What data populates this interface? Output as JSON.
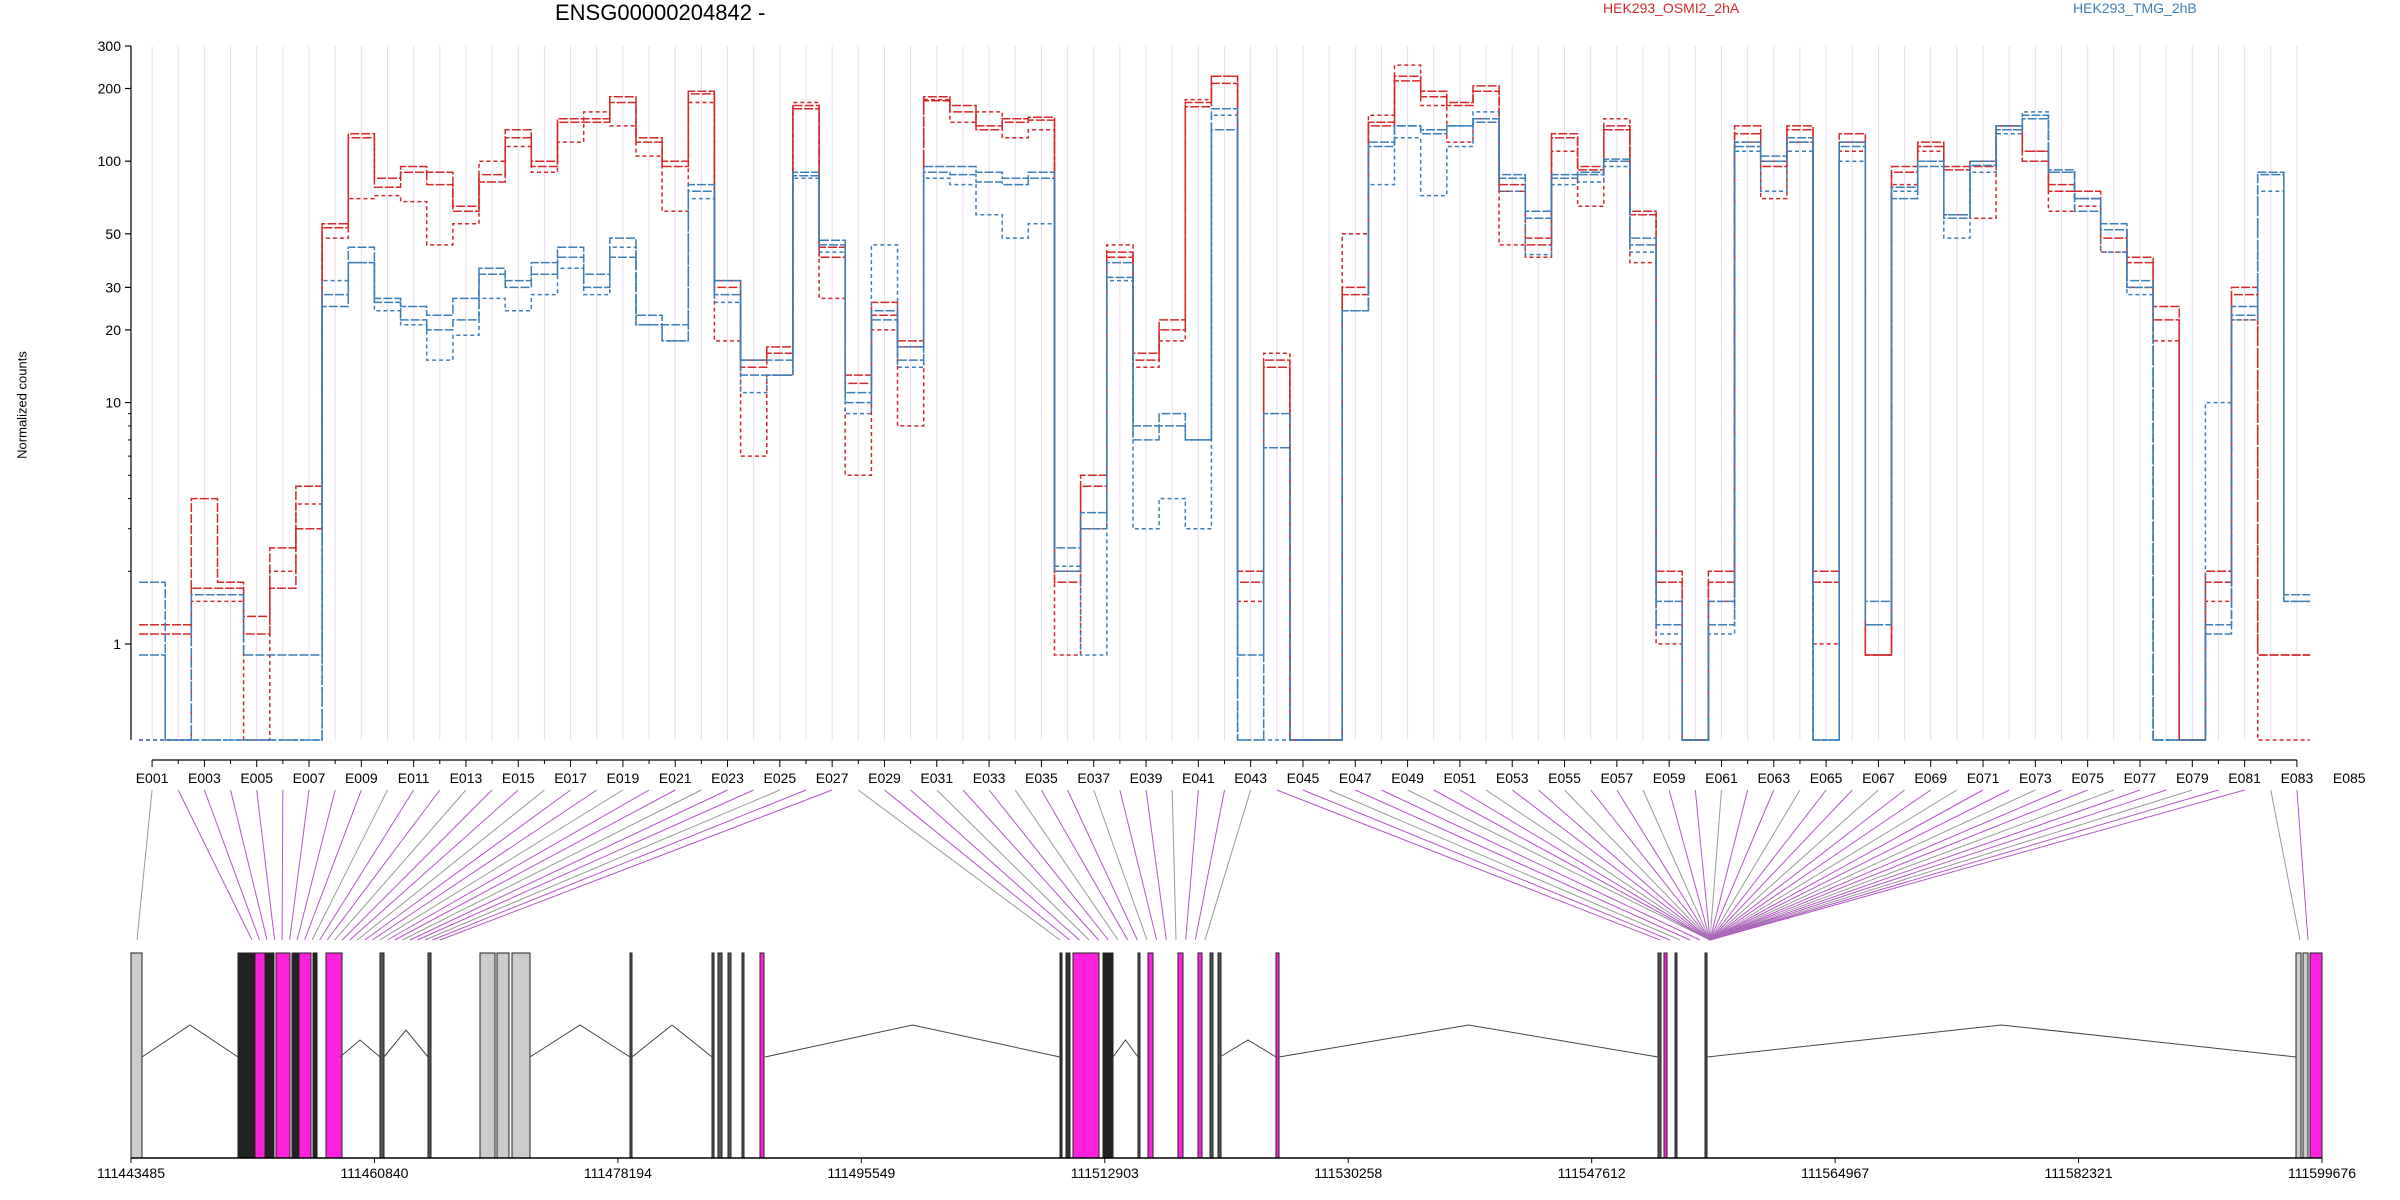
{
  "gene": "ENSG00000204842 -",
  "ylabel": "Normalized counts",
  "legend": [
    {
      "name": "HEK293_OSMI2_2hA",
      "color": "#d62728"
    },
    {
      "name": "HEK293_TMG_2hB",
      "color": "#3b7fb8"
    }
  ],
  "colors": {
    "highlight": "#ff22dd",
    "link_highlight": "#b455c8",
    "link_plain": "#999999",
    "exon_plain": "#cccccc"
  },
  "chart_data": {
    "type": "line",
    "scale": "log",
    "ylim": [
      0.4,
      300
    ],
    "yticks": [
      1,
      10,
      20,
      30,
      50,
      100,
      200,
      300
    ],
    "exon_labels": [
      "E001",
      "E003",
      "E005",
      "E007",
      "E009",
      "E011",
      "E013",
      "E015",
      "E017",
      "E019",
      "E021",
      "E023",
      "E025",
      "E027",
      "E029",
      "E031",
      "E033",
      "E035",
      "E037",
      "E039",
      "E041",
      "E043",
      "E045",
      "E047",
      "E049",
      "E051",
      "E053",
      "E055",
      "E057",
      "E059",
      "E061",
      "E063",
      "E065",
      "E067",
      "E069",
      "E071",
      "E073",
      "E075",
      "E077",
      "E079",
      "E081",
      "E083",
      "E085"
    ],
    "series": [
      {
        "group": 0,
        "style": "solid",
        "values": [
          1.1,
          1.1,
          1.7,
          1.7,
          1.1,
          1.7,
          3,
          53,
          130,
          78,
          95,
          90,
          65,
          82,
          135,
          100,
          150,
          150,
          185,
          125,
          100,
          190,
          30,
          14,
          17,
          170,
          44,
          13,
          26,
          18,
          185,
          170,
          140,
          150,
          152,
          2,
          5,
          42,
          16,
          22,
          175,
          225,
          2,
          15,
          0.4,
          0.4,
          30,
          140,
          225,
          195,
          175,
          205,
          80,
          45,
          130,
          95,
          140,
          60,
          2,
          0.4,
          2,
          140,
          100,
          140,
          2,
          130,
          0.9,
          95,
          120,
          95,
          100,
          140,
          100,
          75,
          70,
          52,
          40,
          25,
          0.4,
          2,
          30,
          0.9,
          0.9
        ]
      },
      {
        "group": 0,
        "style": "solid",
        "values": [
          1.2,
          1.2,
          4,
          1.8,
          1.3,
          2.5,
          4.5,
          55,
          125,
          85,
          90,
          80,
          62,
          88,
          125,
          95,
          145,
          145,
          175,
          120,
          95,
          195,
          32,
          15,
          16,
          165,
          40,
          12,
          23,
          17,
          178,
          160,
          135,
          145,
          148,
          1.8,
          4.5,
          40,
          15,
          20,
          168,
          210,
          1.8,
          14,
          0.4,
          0.4,
          28,
          145,
          215,
          185,
          170,
          195,
          75,
          48,
          125,
          92,
          135,
          62,
          1.8,
          0.4,
          1.8,
          130,
          95,
          135,
          1.8,
          120,
          0.9,
          90,
          115,
          92,
          95,
          135,
          110,
          80,
          75,
          48,
          38,
          22,
          0.4,
          1.8,
          28,
          0.9,
          0.9
        ]
      },
      {
        "group": 0,
        "style": "dashed",
        "values": [
          0.4,
          0.4,
          1.5,
          1.5,
          0.4,
          2,
          3.8,
          48,
          70,
          72,
          68,
          45,
          55,
          100,
          115,
          90,
          120,
          160,
          140,
          105,
          62,
          175,
          18,
          6,
          13,
          175,
          27,
          5,
          20,
          8,
          180,
          145,
          160,
          125,
          135,
          0.9,
          3,
          45,
          14,
          18,
          180,
          225,
          1.5,
          16,
          0.4,
          0.4,
          50,
          155,
          250,
          170,
          120,
          150,
          45,
          40,
          110,
          65,
          150,
          38,
          1,
          0.4,
          1.5,
          120,
          70,
          120,
          1,
          110,
          0.9,
          80,
          110,
          60,
          58,
          140,
          110,
          62,
          65,
          42,
          30,
          18,
          0.4,
          1.5,
          22,
          0.4,
          0.4
        ]
      },
      {
        "group": 1,
        "style": "solid",
        "values": [
          0.9,
          0.4,
          1.6,
          1.6,
          0.9,
          0.9,
          0.9,
          28,
          38,
          26,
          22,
          20,
          22,
          34,
          32,
          38,
          40,
          30,
          40,
          21,
          18,
          80,
          32,
          15,
          15,
          87,
          45,
          11,
          24,
          17,
          90,
          88,
          82,
          80,
          85,
          2.5,
          3.5,
          38,
          7,
          9,
          7,
          165,
          0.9,
          9,
          0.4,
          0.4,
          24,
          120,
          140,
          130,
          140,
          145,
          85,
          58,
          85,
          88,
          100,
          48,
          1.5,
          0.4,
          1.5,
          115,
          100,
          120,
          0.4,
          115,
          1.5,
          78,
          95,
          60,
          100,
          140,
          150,
          90,
          70,
          55,
          30,
          0.4,
          0.4,
          1.2,
          23,
          90,
          1.5
        ]
      },
      {
        "group": 1,
        "style": "solid",
        "values": [
          1.8,
          0.4,
          0.4,
          0.4,
          0.4,
          0.4,
          0.4,
          25,
          44,
          27,
          25,
          23,
          27,
          36,
          30,
          34,
          44,
          34,
          48,
          23,
          21,
          75,
          28,
          13,
          13,
          90,
          47,
          10,
          22,
          15,
          95,
          95,
          90,
          85,
          90,
          2,
          3,
          33,
          8,
          8,
          7,
          135,
          0.4,
          6.5,
          0.4,
          0.4,
          24,
          115,
          140,
          135,
          140,
          150,
          88,
          62,
          88,
          90,
          102,
          45,
          1.2,
          0.4,
          1.2,
          120,
          105,
          125,
          0.4,
          120,
          1.2,
          70,
          100,
          58,
          96,
          135,
          155,
          92,
          62,
          52,
          32,
          0.4,
          0.4,
          1.1,
          25,
          88,
          1.6
        ]
      },
      {
        "group": 1,
        "style": "dashed",
        "values": [
          0.4,
          0.4,
          0.4,
          0.4,
          0.4,
          0.4,
          0.4,
          32,
          38,
          24,
          21,
          15,
          19,
          27,
          24,
          28,
          36,
          28,
          44,
          21,
          18,
          70,
          26,
          11,
          13,
          85,
          42,
          9,
          45,
          14,
          85,
          80,
          60,
          48,
          55,
          2.1,
          0.9,
          32,
          3,
          4,
          3,
          155,
          0.4,
          0.4,
          0.4,
          0.4,
          24,
          80,
          125,
          72,
          115,
          160,
          75,
          41,
          80,
          82,
          95,
          42,
          1.1,
          0.4,
          1.1,
          110,
          75,
          110,
          0.4,
          100,
          1.2,
          75,
          100,
          48,
          90,
          130,
          160,
          90,
          70,
          42,
          28,
          0.4,
          0.4,
          10,
          22,
          75,
          1.5
        ]
      }
    ]
  },
  "genome": {
    "positions": [
      "111443485",
      "111460840",
      "111478194",
      "111495549",
      "111512903",
      "111530258",
      "111547612",
      "111564967",
      "111582321",
      "111599676"
    ]
  }
}
